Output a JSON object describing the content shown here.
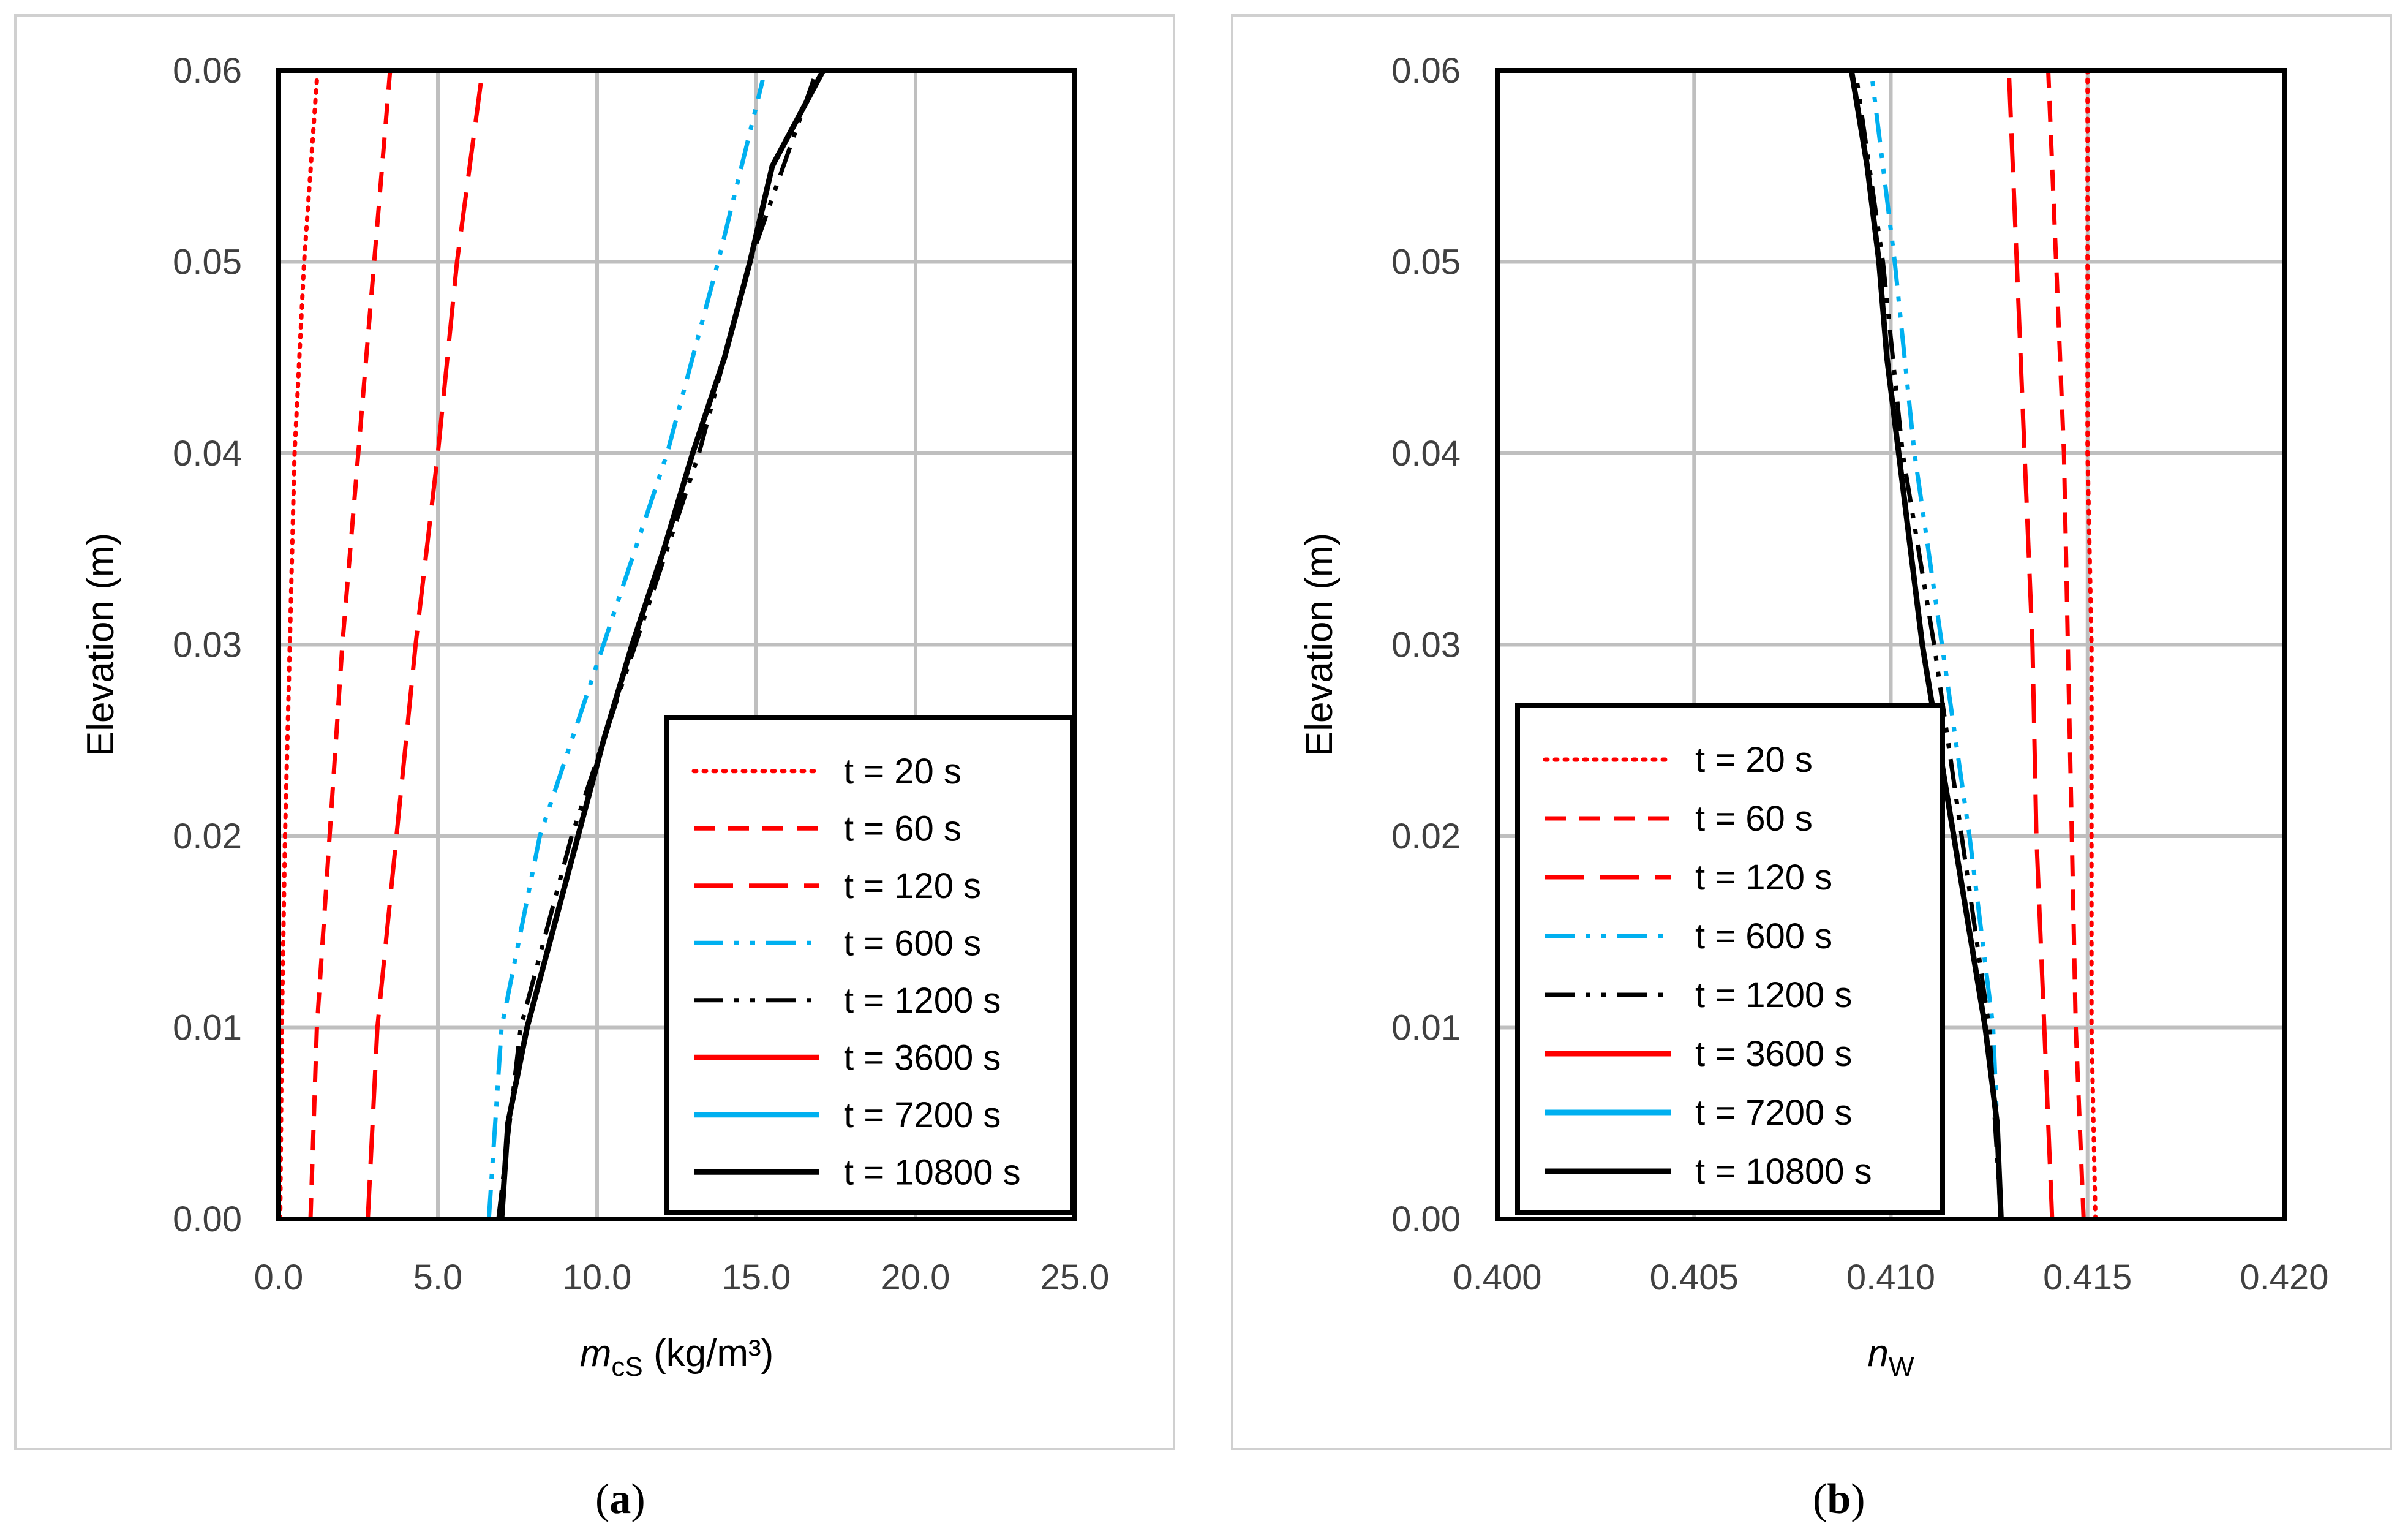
{
  "chart_data": [
    {
      "type": "line",
      "panel": "a",
      "caption": {
        "open": "(",
        "letter": "a",
        "close": ")"
      },
      "ylabel": "Elevation (m)",
      "xlabel": {
        "main": "m",
        "sub": "cS",
        "units": " (kg/m³)"
      },
      "xlim": [
        0,
        25
      ],
      "ylim": [
        0,
        0.06
      ],
      "xticks": [
        0,
        5,
        10,
        15,
        20,
        25
      ],
      "xtick_labels": [
        "0.0",
        "5.0",
        "10.0",
        "15.0",
        "20.0",
        "25.0"
      ],
      "yticks": [
        0,
        0.01,
        0.02,
        0.03,
        0.04,
        0.05,
        0.06
      ],
      "ytick_labels": [
        "0.00",
        "0.01",
        "0.02",
        "0.03",
        "0.04",
        "0.05",
        "0.06"
      ],
      "grid": true,
      "legend_position": "lower-right",
      "series": [
        {
          "name": "t = 20 s",
          "color": "#ff0000",
          "style": "dotted",
          "points": [
            [
              0.05,
              0
            ],
            [
              0.1,
              0.01
            ],
            [
              0.2,
              0.02
            ],
            [
              0.35,
              0.03
            ],
            [
              0.5,
              0.04
            ],
            [
              0.8,
              0.05
            ],
            [
              1.2,
              0.0595
            ]
          ]
        },
        {
          "name": "t = 60 s",
          "color": "#ff0000",
          "style": "dash",
          "points": [
            [
              1.0,
              0
            ],
            [
              1.2,
              0.01
            ],
            [
              1.6,
              0.02
            ],
            [
              2.0,
              0.03
            ],
            [
              2.5,
              0.04
            ],
            [
              3.0,
              0.05
            ],
            [
              3.5,
              0.06
            ]
          ]
        },
        {
          "name": "t = 120 s",
          "color": "#ff0000",
          "style": "longdash",
          "points": [
            [
              2.8,
              0
            ],
            [
              3.1,
              0.01
            ],
            [
              3.7,
              0.02
            ],
            [
              4.3,
              0.03
            ],
            [
              5.0,
              0.04
            ],
            [
              5.6,
              0.05
            ],
            [
              6.4,
              0.06
            ]
          ]
        },
        {
          "name": "t = 600 s",
          "color": "#00b0f0",
          "style": "dashdotdot",
          "points": [
            [
              6.6,
              0
            ],
            [
              7.0,
              0.01
            ],
            [
              8.2,
              0.02
            ],
            [
              10.2,
              0.03
            ],
            [
              12.2,
              0.04
            ],
            [
              13.8,
              0.05
            ],
            [
              15.2,
              0.0595
            ]
          ]
        },
        {
          "name": "t = 1200 s",
          "color": "#000000",
          "style": "dashdotdot",
          "points": [
            [
              6.9,
              0
            ],
            [
              7.6,
              0.01
            ],
            [
              9.2,
              0.02
            ],
            [
              11.2,
              0.03
            ],
            [
              13.2,
              0.04
            ],
            [
              14.8,
              0.05
            ],
            [
              16.9,
              0.06
            ]
          ]
        },
        {
          "name": "t = 3600 s",
          "color": "#ff0000",
          "style": "solid",
          "points": []
        },
        {
          "name": "t = 7200 s",
          "color": "#00b0f0",
          "style": "solid",
          "points": []
        },
        {
          "name": "t = 10800 s",
          "color": "#000000",
          "style": "solid",
          "points": [
            [
              7.0,
              0
            ],
            [
              7.2,
              0.005
            ],
            [
              7.8,
              0.01
            ],
            [
              8.6,
              0.015
            ],
            [
              9.4,
              0.02
            ],
            [
              10.2,
              0.025
            ],
            [
              11.1,
              0.03
            ],
            [
              12.1,
              0.035
            ],
            [
              13.0,
              0.04
            ],
            [
              14.0,
              0.045
            ],
            [
              14.8,
              0.05
            ],
            [
              15.5,
              0.055
            ],
            [
              17.1,
              0.06
            ]
          ]
        }
      ]
    },
    {
      "type": "line",
      "panel": "b",
      "caption": {
        "open": "(",
        "letter": "b",
        "close": ")"
      },
      "ylabel": "Elevation (m)",
      "xlabel": {
        "main": "n",
        "sub": "W",
        "units": ""
      },
      "xlim": [
        0.4,
        0.42
      ],
      "ylim": [
        0,
        0.06
      ],
      "xticks": [
        0.4,
        0.405,
        0.41,
        0.415,
        0.42
      ],
      "xtick_labels": [
        "0.400",
        "0.405",
        "0.410",
        "0.415",
        "0.420"
      ],
      "yticks": [
        0,
        0.01,
        0.02,
        0.03,
        0.04,
        0.05,
        0.06
      ],
      "ytick_labels": [
        "0.00",
        "0.01",
        "0.02",
        "0.03",
        "0.04",
        "0.05",
        "0.06"
      ],
      "grid": true,
      "legend_position": "lower-left",
      "series": [
        {
          "name": "t = 20 s",
          "color": "#ff0000",
          "style": "dotted",
          "points": [
            [
              0.4152,
              0
            ],
            [
              0.4151,
              0.01
            ],
            [
              0.4151,
              0.02
            ],
            [
              0.4151,
              0.03
            ],
            [
              0.415,
              0.04
            ],
            [
              0.415,
              0.05
            ],
            [
              0.415,
              0.06
            ]
          ]
        },
        {
          "name": "t = 60 s",
          "color": "#ff0000",
          "style": "dash",
          "points": [
            [
              0.4149,
              0
            ],
            [
              0.4147,
              0.01
            ],
            [
              0.4146,
              0.02
            ],
            [
              0.4145,
              0.03
            ],
            [
              0.4144,
              0.04
            ],
            [
              0.4142,
              0.05
            ],
            [
              0.414,
              0.06
            ]
          ]
        },
        {
          "name": "t = 120 s",
          "color": "#ff0000",
          "style": "longdash",
          "points": [
            [
              0.4141,
              0
            ],
            [
              0.4139,
              0.01
            ],
            [
              0.4137,
              0.02
            ],
            [
              0.4136,
              0.03
            ],
            [
              0.4134,
              0.04
            ],
            [
              0.4132,
              0.05
            ],
            [
              0.413,
              0.06
            ]
          ]
        },
        {
          "name": "t = 600 s",
          "color": "#00b0f0",
          "style": "dashdotdot",
          "points": [
            [
              0.4128,
              0
            ],
            [
              0.4126,
              0.01
            ],
            [
              0.412,
              0.02
            ],
            [
              0.4113,
              0.03
            ],
            [
              0.4106,
              0.04
            ],
            [
              0.4101,
              0.05
            ],
            [
              0.4095,
              0.06
            ]
          ]
        },
        {
          "name": "t = 1200 s",
          "color": "#000000",
          "style": "dashdotdot",
          "points": [
            [
              0.4128,
              0
            ],
            [
              0.4125,
              0.01
            ],
            [
              0.4118,
              0.02
            ],
            [
              0.4111,
              0.03
            ],
            [
              0.4103,
              0.04
            ],
            [
              0.4098,
              0.05
            ],
            [
              0.4091,
              0.06
            ]
          ]
        },
        {
          "name": "t = 3600 s",
          "color": "#ff0000",
          "style": "solid",
          "points": []
        },
        {
          "name": "t = 7200 s",
          "color": "#00b0f0",
          "style": "solid",
          "points": []
        },
        {
          "name": "t = 10800 s",
          "color": "#000000",
          "style": "solid",
          "points": [
            [
              0.4128,
              0
            ],
            [
              0.4127,
              0.005
            ],
            [
              0.4124,
              0.01
            ],
            [
              0.412,
              0.015
            ],
            [
              0.4116,
              0.02
            ],
            [
              0.4112,
              0.025
            ],
            [
              0.4108,
              0.03
            ],
            [
              0.4105,
              0.035
            ],
            [
              0.4102,
              0.04
            ],
            [
              0.4099,
              0.045
            ],
            [
              0.4097,
              0.05
            ],
            [
              0.4094,
              0.055
            ],
            [
              0.409,
              0.06
            ]
          ]
        }
      ]
    }
  ]
}
